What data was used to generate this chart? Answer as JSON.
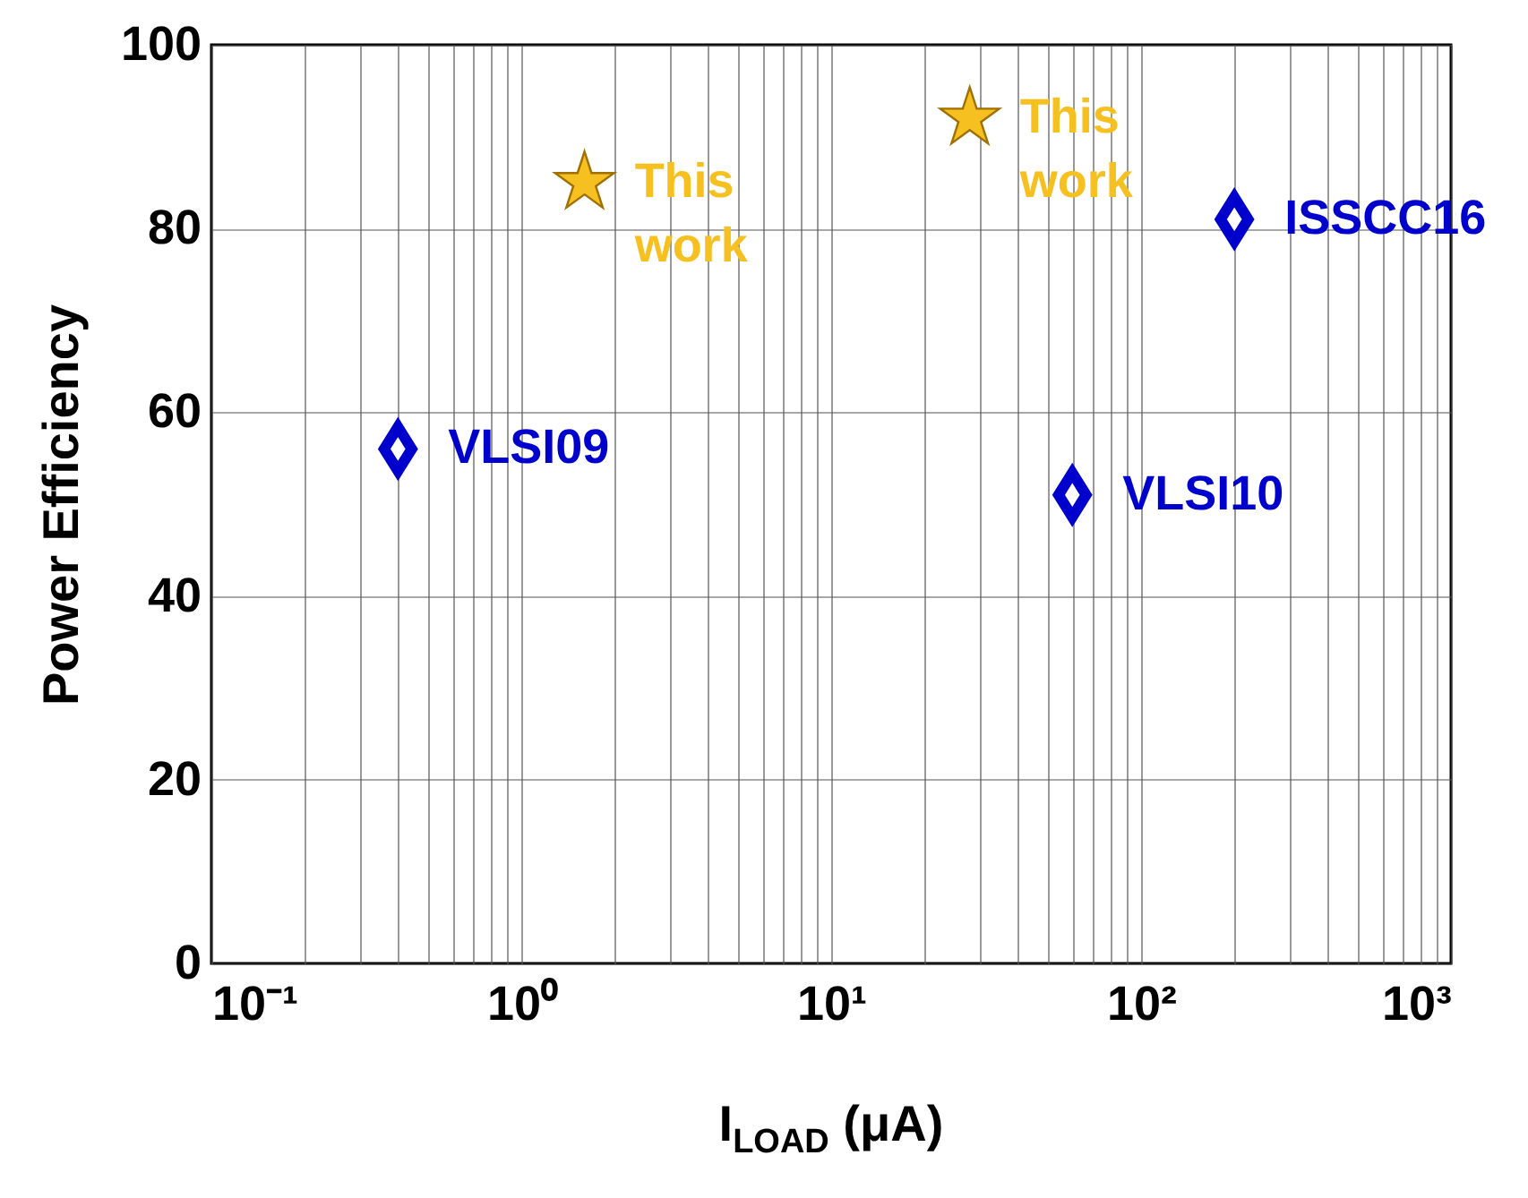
{
  "chart_data": {
    "type": "scatter",
    "xlabel": "I$_{LOAD}$ (μA)",
    "ylabel": "Power Efficiency",
    "log": "x",
    "grid": true,
    "xlim": [
      0.1,
      1000
    ],
    "ylim": [
      0,
      100
    ],
    "xticks": [
      {
        "value": 0.1,
        "label": "10⁻¹"
      },
      {
        "value": 0.2,
        "label": null
      },
      {
        "value": 0.3,
        "label": null
      },
      {
        "value": 0.4,
        "label": null
      },
      {
        "value": 0.5,
        "label": null
      },
      {
        "value": 0.6,
        "label": null
      },
      {
        "value": 0.7,
        "label": null
      },
      {
        "value": 0.8,
        "label": null
      },
      {
        "value": 0.9,
        "label": null
      },
      {
        "value": 1,
        "label": "10⁰"
      },
      {
        "value": 2,
        "label": null
      },
      {
        "value": 3,
        "label": null
      },
      {
        "value": 4,
        "label": null
      },
      {
        "value": 5,
        "label": null
      },
      {
        "value": 6,
        "label": null
      },
      {
        "value": 7,
        "label": null
      },
      {
        "value": 8,
        "label": null
      },
      {
        "value": 9,
        "label": null
      },
      {
        "value": 10,
        "label": "10¹"
      },
      {
        "value": 20,
        "label": null
      },
      {
        "value": 30,
        "label": null
      },
      {
        "value": 40,
        "label": null
      },
      {
        "value": 50,
        "label": null
      },
      {
        "value": 60,
        "label": null
      },
      {
        "value": 70,
        "label": null
      },
      {
        "value": 80,
        "label": null
      },
      {
        "value": 90,
        "label": null
      },
      {
        "value": 100,
        "label": "10²"
      },
      {
        "value": 200,
        "label": null
      },
      {
        "value": 300,
        "label": null
      },
      {
        "value": 400,
        "label": null
      },
      {
        "value": 500,
        "label": null
      },
      {
        "value": 600,
        "label": null
      },
      {
        "value": 700,
        "label": null
      },
      {
        "value": 800,
        "label": null
      },
      {
        "value": 900,
        "label": null
      },
      {
        "value": 1000,
        "label": "10³"
      }
    ],
    "yticks": [
      0,
      20,
      40,
      60,
      80,
      100
    ],
    "series": [
      {
        "color": "#f5c020",
        "marker": "star",
        "x": [
          1.6,
          28
        ],
        "values": [
          85,
          92
        ]
      },
      {
        "color": "#0000cc",
        "marker": "diamond",
        "x": [
          0.4,
          60,
          200
        ],
        "values": [
          56,
          51,
          81
        ]
      }
    ],
    "annotations": [
      {
        "text": "This work",
        "x": 1.6,
        "y": 85
      },
      {
        "text": "This work",
        "x": 28,
        "y": 92
      },
      {
        "text": "VLSI09",
        "x": 0.4,
        "y": 56
      },
      {
        "text": "VLSI10",
        "x": 60,
        "y": 51
      },
      {
        "text": "ISSCC16",
        "x": 200,
        "y": 81
      }
    ]
  }
}
